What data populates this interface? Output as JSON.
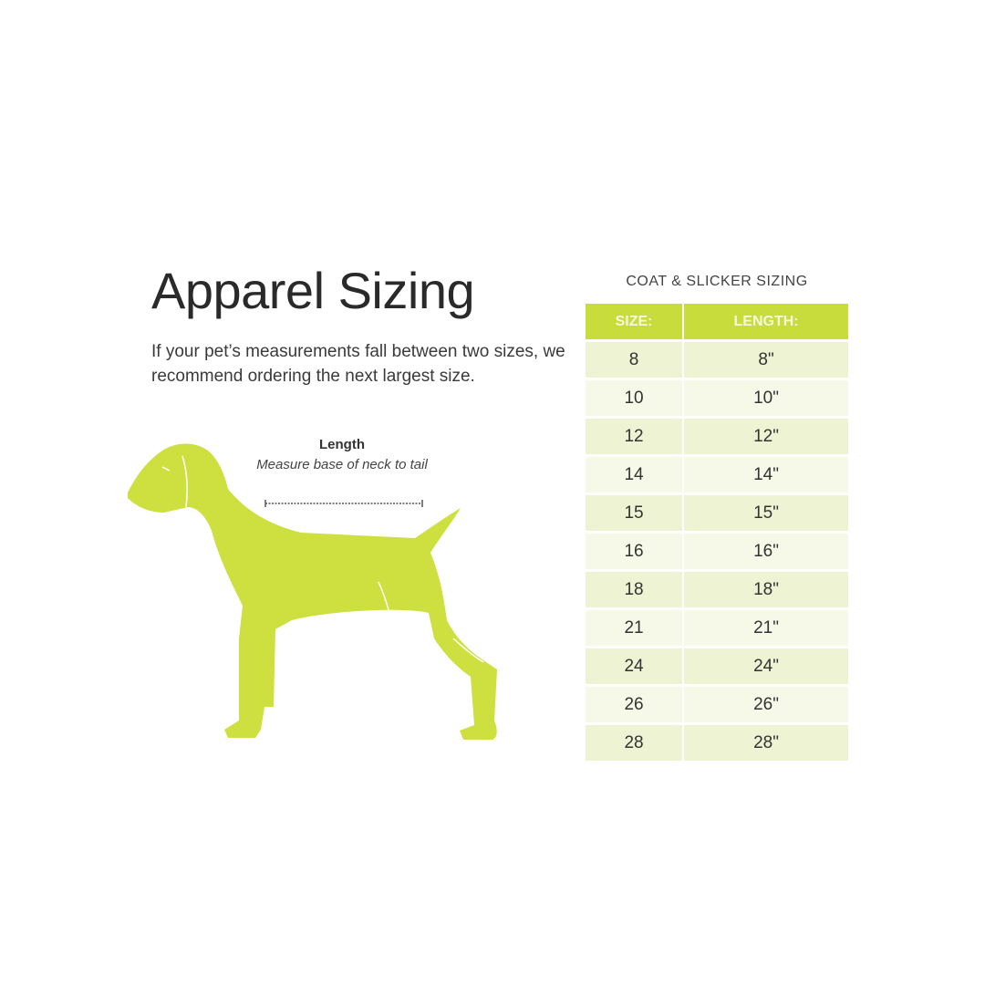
{
  "title": "Apparel Sizing",
  "intro": "If your pet’s measurements fall between two sizes, we recommend ordering the next largest size.",
  "measurement": {
    "label": "Length",
    "description": "Measure base of neck to tail"
  },
  "colors": {
    "accent": "#c8dc3c",
    "dog": "#cde040",
    "row_light": "#f6f9e8",
    "row_dark": "#eef3d3"
  },
  "table": {
    "caption": "COAT & SLICKER SIZING",
    "headers": [
      "SIZE:",
      "LENGTH:"
    ],
    "rows": [
      [
        "8",
        "8\""
      ],
      [
        "10",
        "10\""
      ],
      [
        "12",
        "12\""
      ],
      [
        "14",
        "14\""
      ],
      [
        "15",
        "15\""
      ],
      [
        "16",
        "16\""
      ],
      [
        "18",
        "18\""
      ],
      [
        "21",
        "21\""
      ],
      [
        "24",
        "24\""
      ],
      [
        "26",
        "26\""
      ],
      [
        "28",
        "28\""
      ]
    ]
  }
}
